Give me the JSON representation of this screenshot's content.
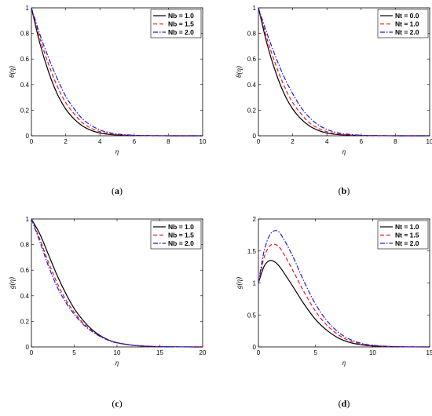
{
  "chart_data": [
    {
      "type": "line",
      "caption_letter": "a",
      "xlabel": "η",
      "ylabel": "θ(η)",
      "xlim": [
        0,
        10
      ],
      "ylim": [
        0,
        1
      ],
      "xticks": [
        "0",
        "2",
        "4",
        "6",
        "8",
        "10"
      ],
      "yticks": [
        "0",
        "0.2",
        "0.4",
        "0.6",
        "0.8",
        "1"
      ],
      "legend_position": "top-right",
      "series": [
        {
          "name": "Nb = 1.0",
          "color": "#000000",
          "style": "solid",
          "x": [
            0,
            0.5,
            1,
            1.5,
            2,
            2.5,
            3,
            3.5,
            4,
            4.5,
            5,
            6,
            7,
            8,
            10
          ],
          "y": [
            1,
            0.72,
            0.5,
            0.33,
            0.21,
            0.13,
            0.075,
            0.042,
            0.022,
            0.011,
            0.006,
            0.0015,
            0.0004,
            0.0001,
            0
          ]
        },
        {
          "name": "Nb = 1.5",
          "color": "#e8141b",
          "style": "dash",
          "x": [
            0,
            0.5,
            1,
            1.5,
            2,
            2.5,
            3,
            3.5,
            4,
            4.5,
            5,
            6,
            7,
            8,
            10
          ],
          "y": [
            1,
            0.76,
            0.56,
            0.39,
            0.26,
            0.17,
            0.1,
            0.058,
            0.032,
            0.017,
            0.009,
            0.0025,
            0.0007,
            0.0002,
            0
          ]
        },
        {
          "name": "Nb = 2.0",
          "color": "#1a1ad6",
          "style": "dashdot",
          "x": [
            0,
            0.5,
            1,
            1.5,
            2,
            2.5,
            3,
            3.5,
            4,
            4.5,
            5,
            6,
            7,
            8,
            10
          ],
          "y": [
            1,
            0.79,
            0.61,
            0.45,
            0.31,
            0.21,
            0.13,
            0.08,
            0.046,
            0.026,
            0.014,
            0.004,
            0.0012,
            0.0003,
            0
          ]
        }
      ]
    },
    {
      "type": "line",
      "caption_letter": "b",
      "xlabel": "η",
      "ylabel": "θ(η)",
      "xlim": [
        0,
        10
      ],
      "ylim": [
        0,
        1
      ],
      "xticks": [
        "0",
        "2",
        "4",
        "6",
        "8",
        "10"
      ],
      "yticks": [
        "0",
        "0.2",
        "0.4",
        "0.6",
        "0.8",
        "1"
      ],
      "legend_position": "top-right",
      "series": [
        {
          "name": "Nt = 0.0",
          "color": "#000000",
          "style": "solid",
          "x": [
            0,
            0.5,
            1,
            1.5,
            2,
            2.5,
            3,
            3.5,
            4,
            4.5,
            5,
            6,
            7,
            8,
            10
          ],
          "y": [
            1,
            0.72,
            0.5,
            0.33,
            0.21,
            0.13,
            0.075,
            0.042,
            0.022,
            0.011,
            0.006,
            0.0015,
            0.0004,
            0.0001,
            0
          ]
        },
        {
          "name": "Nt = 1.0",
          "color": "#e8141b",
          "style": "dash",
          "x": [
            0,
            0.5,
            1,
            1.5,
            2,
            2.5,
            3,
            3.5,
            4,
            4.5,
            5,
            6,
            7,
            8,
            10
          ],
          "y": [
            1,
            0.76,
            0.56,
            0.39,
            0.26,
            0.17,
            0.1,
            0.058,
            0.032,
            0.017,
            0.009,
            0.0025,
            0.0007,
            0.0002,
            0
          ]
        },
        {
          "name": "Nt = 2.0",
          "color": "#1a1ad6",
          "style": "dashdot",
          "x": [
            0,
            0.5,
            1,
            1.5,
            2,
            2.5,
            3,
            3.5,
            4,
            4.5,
            5,
            6,
            7,
            8,
            10
          ],
          "y": [
            1,
            0.8,
            0.62,
            0.46,
            0.33,
            0.22,
            0.14,
            0.085,
            0.05,
            0.028,
            0.015,
            0.0045,
            0.0013,
            0.0003,
            0
          ]
        }
      ]
    },
    {
      "type": "line",
      "caption_letter": "c",
      "xlabel": "η",
      "ylabel": "g(η)",
      "xlim": [
        0,
        20
      ],
      "ylim": [
        0,
        1
      ],
      "xticks": [
        "0",
        "5",
        "10",
        "15",
        "20"
      ],
      "yticks": [
        "0",
        "0.2",
        "0.4",
        "0.6",
        "0.8",
        "1"
      ],
      "legend_position": "top-right",
      "series": [
        {
          "name": "Nb = 1.0",
          "color": "#000000",
          "style": "solid",
          "x": [
            0,
            1,
            2,
            3,
            4,
            5,
            6,
            7,
            8,
            9,
            10,
            12,
            14,
            16,
            20
          ],
          "y": [
            1,
            0.88,
            0.72,
            0.56,
            0.42,
            0.3,
            0.21,
            0.14,
            0.09,
            0.055,
            0.033,
            0.012,
            0.004,
            0.001,
            0
          ]
        },
        {
          "name": "Nb = 1.5",
          "color": "#e8141b",
          "style": "dash",
          "x": [
            0,
            1,
            2,
            3,
            4,
            5,
            6,
            7,
            8,
            9,
            10,
            12,
            14,
            16,
            20
          ],
          "y": [
            1,
            0.84,
            0.66,
            0.5,
            0.37,
            0.27,
            0.19,
            0.13,
            0.085,
            0.053,
            0.032,
            0.012,
            0.004,
            0.001,
            0
          ]
        },
        {
          "name": "Nb = 2.0",
          "color": "#1a1ad6",
          "style": "dashdot",
          "x": [
            0,
            1,
            2,
            3,
            4,
            5,
            6,
            7,
            8,
            9,
            10,
            12,
            14,
            16,
            20
          ],
          "y": [
            1,
            0.82,
            0.63,
            0.47,
            0.35,
            0.255,
            0.18,
            0.125,
            0.083,
            0.052,
            0.032,
            0.012,
            0.004,
            0.001,
            0
          ]
        }
      ]
    },
    {
      "type": "line",
      "caption_letter": "d",
      "xlabel": "η",
      "ylabel": "g(η)",
      "xlim": [
        0,
        15
      ],
      "ylim": [
        0,
        2
      ],
      "xticks": [
        "0",
        "5",
        "10",
        "15"
      ],
      "yticks": [
        "0",
        "0.5",
        "1",
        "1.5",
        "2"
      ],
      "legend_position": "top-right",
      "series": [
        {
          "name": "Nt = 1.0",
          "color": "#000000",
          "style": "solid",
          "x": [
            0,
            0.5,
            1,
            1.5,
            2,
            3,
            4,
            5,
            6,
            7,
            8,
            9,
            10,
            12,
            15
          ],
          "y": [
            1,
            1.26,
            1.35,
            1.32,
            1.22,
            0.95,
            0.67,
            0.43,
            0.26,
            0.14,
            0.07,
            0.033,
            0.015,
            0.003,
            0
          ]
        },
        {
          "name": "Nt = 1.5",
          "color": "#e8141b",
          "style": "dash",
          "x": [
            0,
            0.5,
            1,
            1.5,
            2,
            3,
            4,
            5,
            6,
            7,
            8,
            9,
            10,
            12,
            15
          ],
          "y": [
            1,
            1.4,
            1.58,
            1.6,
            1.52,
            1.2,
            0.86,
            0.56,
            0.34,
            0.19,
            0.095,
            0.045,
            0.02,
            0.004,
            0
          ]
        },
        {
          "name": "Nt = 2.0",
          "color": "#1a1ad6",
          "style": "dashdot",
          "x": [
            0,
            0.5,
            1,
            1.5,
            2,
            3,
            4,
            5,
            6,
            7,
            8,
            9,
            10,
            12,
            15
          ],
          "y": [
            1,
            1.5,
            1.75,
            1.82,
            1.75,
            1.42,
            1.02,
            0.67,
            0.41,
            0.23,
            0.12,
            0.057,
            0.026,
            0.005,
            0
          ]
        }
      ]
    }
  ]
}
